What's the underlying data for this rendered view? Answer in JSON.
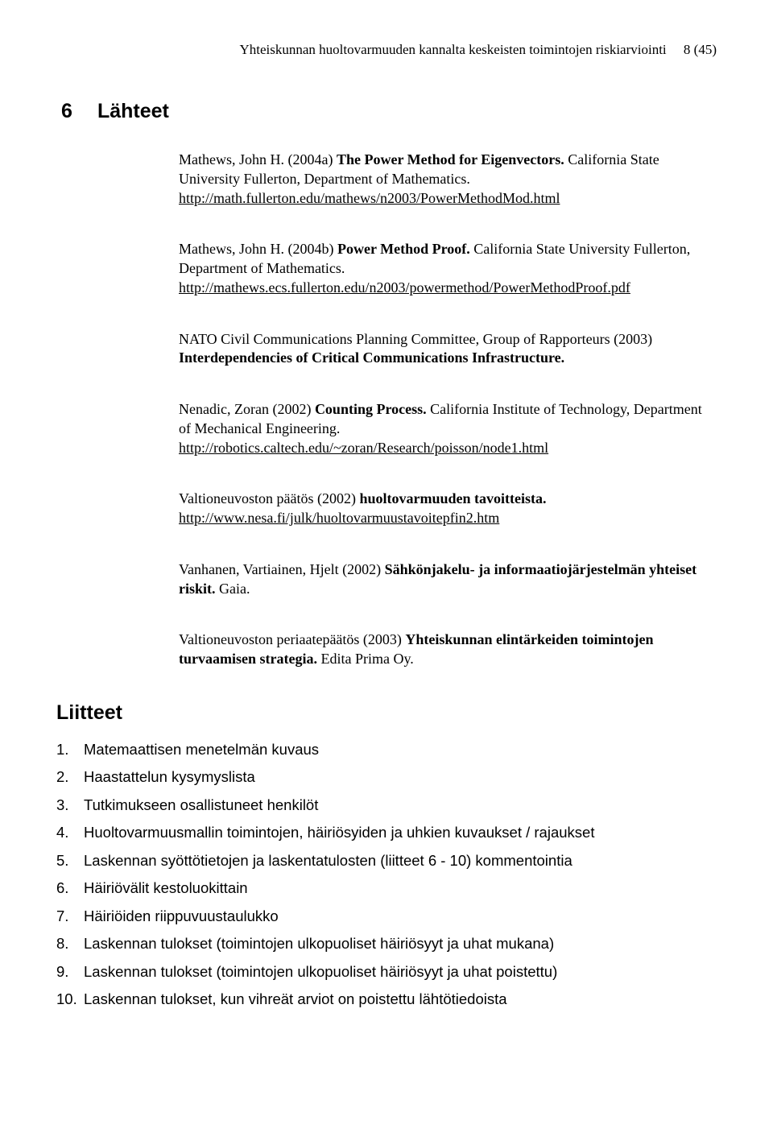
{
  "header": {
    "title": "Yhteiskunnan huoltovarmuuden kannalta keskeisten toimintojen riskiarviointi",
    "page_label": "8 (45)"
  },
  "section": {
    "number": "6",
    "title": "Lähteet"
  },
  "refs": [
    {
      "pre": "Mathews, John H. (2004a) ",
      "bold": "The Power Method for Eigenvectors.",
      "post": " California State University Fullerton, Department of Mathematics.",
      "link": "http://math.fullerton.edu/mathews/n2003/PowerMethodMod.html"
    },
    {
      "pre": "Mathews, John H. (2004b) ",
      "bold": "Power Method Proof.",
      "post": " California State University Fullerton, Department of Mathematics.",
      "link": "http://mathews.ecs.fullerton.edu/n2003/powermethod/PowerMethodProof.pdf"
    },
    {
      "pre": "NATO Civil Communications Planning Committee, Group of Rapporteurs (2003) ",
      "bold": "Interdependencies of Critical Communications Infrastructure.",
      "post": "",
      "link": ""
    },
    {
      "pre": "Nenadic, Zoran (2002) ",
      "bold": "Counting Process.",
      "post": " California Institute of Technology, Department of Mechanical Engineering.",
      "link": "http://robotics.caltech.edu/~zoran/Research/poisson/node1.html"
    },
    {
      "pre": "Valtioneuvoston päätös (2002) ",
      "bold": "huoltovarmuuden tavoitteista.",
      "post": "",
      "link": "http://www.nesa.fi/julk/huoltovarmuustavoitepfin2.htm"
    },
    {
      "pre": "Vanhanen, Vartiainen, Hjelt (2002) ",
      "bold": "Sähkönjakelu- ja informaatiojärjestelmän yhteiset riskit.",
      "post": " Gaia.",
      "link": ""
    },
    {
      "pre": "Valtioneuvoston periaatepäätös (2003) ",
      "bold": "Yhteiskunnan elintärkeiden toimintojen turvaamisen strategia.",
      "post": " Edita Prima Oy.",
      "link": ""
    }
  ],
  "liitteet": {
    "heading": "Liitteet",
    "items": [
      {
        "num": "1.",
        "text": "Matemaattisen menetelmän kuvaus"
      },
      {
        "num": "2.",
        "text": "Haastattelun kysymyslista"
      },
      {
        "num": "3.",
        "text": "Tutkimukseen osallistuneet henkilöt"
      },
      {
        "num": "4.",
        "text": "Huoltovarmuusmallin toimintojen, häiriösyiden ja uhkien kuvaukset / rajaukset"
      },
      {
        "num": "5.",
        "text": "Laskennan syöttötietojen ja laskentatulosten (liitteet 6 - 10) kommentointia"
      },
      {
        "num": "6.",
        "text": "Häiriövälit kestoluokittain"
      },
      {
        "num": "7.",
        "text": "Häiriöiden riippuvuustaulukko"
      },
      {
        "num": "8.",
        "text": "Laskennan tulokset (toimintojen ulkopuoliset häiriösyyt ja uhat mukana)"
      },
      {
        "num": "9.",
        "text": "Laskennan tulokset (toimintojen ulkopuoliset häiriösyyt ja uhat poistettu)"
      },
      {
        "num": "10.",
        "text": "Laskennan tulokset, kun vihreät arviot on poistettu lähtötiedoista"
      }
    ]
  }
}
